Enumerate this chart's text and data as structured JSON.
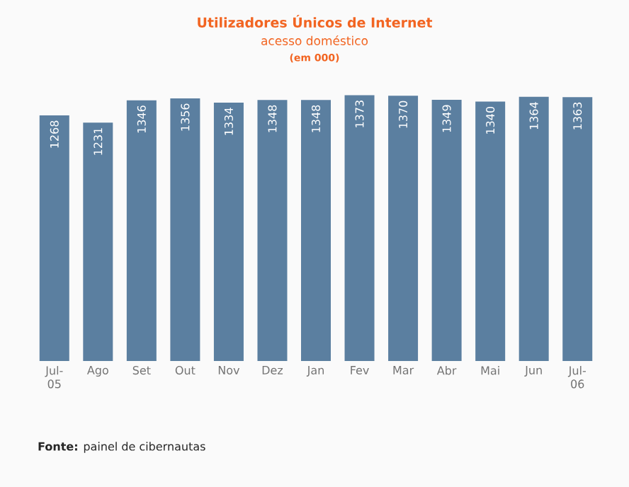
{
  "chart_data": {
    "type": "bar",
    "title": "Utilizadores Únicos de Internet",
    "subtitle": "acesso doméstico",
    "annotations": [
      "(em 000)",
      "**Fonte:** painel de cibernautas"
    ],
    "categories": [
      "Jul-05",
      "Ago",
      "Set",
      "Out",
      "Nov",
      "Dez",
      "Jan",
      "Fev",
      "Mar",
      "Abr",
      "Mai",
      "Jun",
      "Jul-06"
    ],
    "values": [
      1268,
      1231,
      1346,
      1356,
      1334,
      1348,
      1348,
      1373,
      1370,
      1349,
      1340,
      1364,
      1363
    ],
    "color": "#5b7fa0",
    "data_labels": true
  }
}
